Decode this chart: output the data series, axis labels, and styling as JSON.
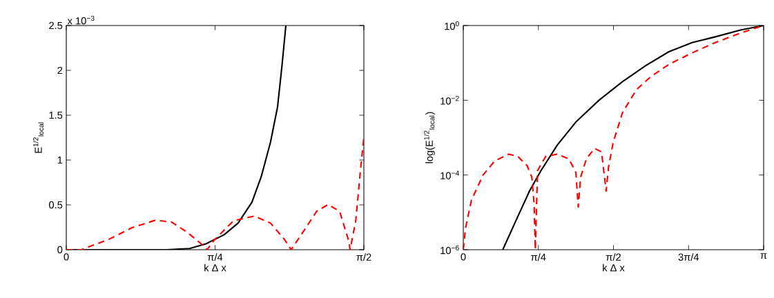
{
  "chart_data": [
    {
      "type": "line",
      "xlabel": "k Δ x",
      "ylabel": "E$^{1/2}$$_{local}$",
      "annotations": [
        "x 10$^{−3}$"
      ],
      "xlim": [
        0,
        1.5708
      ],
      "ylim": [
        0,
        2.5
      ],
      "xticks": [
        0,
        {
          "value": 0.7854,
          "label": "π/4"
        },
        {
          "value": 1.5708,
          "label": "π/2"
        }
      ],
      "yticks": [
        0,
        0.5,
        1,
        1.5,
        2,
        2.5
      ],
      "series": [
        {
          "color": "#000000",
          "line_style": "solid",
          "x": [
            0,
            0.347,
            0.53,
            0.651,
            0.737,
            0.834,
            0.907,
            0.98,
            1.029,
            1.078,
            1.115,
            1.139,
            1.159
          ],
          "values": [
            0,
            0,
            0,
            0.013,
            0.065,
            0.168,
            0.297,
            0.53,
            0.814,
            1.2,
            1.59,
            2.06,
            2.5
          ]
        },
        {
          "color": "#ff0000",
          "line_style": "dashed",
          "x": [
            0,
            0.079,
            0.225,
            0.347,
            0.469,
            0.554,
            0.639,
            0.712,
            0.743,
            0.785,
            0.883,
            0.992,
            1.078,
            1.151,
            1.187,
            1.273,
            1.321,
            1.382,
            1.443,
            1.492,
            1.498,
            1.528,
            1.553,
            1.5708
          ],
          "values": [
            0,
            0,
            0.116,
            0.246,
            0.328,
            0.31,
            0.194,
            0.065,
            0,
            0.116,
            0.323,
            0.375,
            0.297,
            0.116,
            0,
            0.271,
            0.427,
            0.504,
            0.427,
            0.09,
            0,
            0.323,
            0.892,
            1.254
          ]
        }
      ]
    },
    {
      "type": "line",
      "xlabel": "k Δ x",
      "ylabel": "log(E$^{1/2}$$_{local}$)",
      "log": "y",
      "xlim": [
        0,
        3.1416
      ],
      "ylim": [
        1e-06,
        1
      ],
      "xticks": [
        0,
        {
          "value": 0.7854,
          "label": "π/4"
        },
        {
          "value": 1.5708,
          "label": "π/2"
        },
        {
          "value": 2.3562,
          "label": "3π/4"
        },
        {
          "value": 3.1416,
          "label": "π"
        }
      ],
      "yticks": [
        {
          "value": 1e-06,
          "label": "10$^{−6}$"
        },
        {
          "value": 0.0001,
          "label": "10$^{−4}$"
        },
        {
          "value": 0.01,
          "label": "10$^{−2}$"
        },
        {
          "value": 1,
          "label": "10$^{0}$"
        }
      ],
      "series": [
        {
          "color": "#000000",
          "line_style": "solid",
          "x": [
            0.413,
            0.571,
            0.692,
            0.814,
            0.984,
            1.178,
            1.421,
            1.665,
            1.908,
            2.15,
            2.393,
            2.636,
            2.9,
            3.1416
          ],
          "values": [
            1e-06,
            7.8e-06,
            3.7e-05,
            0.000133,
            0.000635,
            0.00262,
            0.0101,
            0.0314,
            0.0847,
            0.199,
            0.35,
            0.499,
            0.759,
            1
          ]
        },
        {
          "color": "#ff0000",
          "line_style": "dashed",
          "x": [
            0,
            0.024,
            0.085,
            0.207,
            0.328,
            0.474,
            0.571,
            0.668,
            0.717,
            0.741,
            0.753,
            0.777,
            0.862,
            0.984,
            1.105,
            1.178,
            1.202,
            1.227,
            1.288,
            1.373,
            1.446,
            1.494,
            1.518,
            1.567,
            1.665,
            1.81,
            1.956,
            2.15,
            2.393,
            2.636,
            2.9,
            3.1416
          ],
          "values": [
            1e-06,
            3.85e-06,
            2.11e-05,
            0.0001,
            0.000236,
            0.00036,
            0.000313,
            0.000177,
            8.7e-05,
            1.59e-05,
            1e-06,
            0.000133,
            0.000313,
            0.00036,
            0.000271,
            0.000116,
            1.38e-05,
            8.7e-05,
            0.000271,
            0.000513,
            0.000415,
            3.72e-05,
            0.000154,
            0.000731,
            0.00468,
            0.0191,
            0.0417,
            0.0912,
            0.185,
            0.35,
            0.631,
            1
          ]
        }
      ]
    }
  ]
}
